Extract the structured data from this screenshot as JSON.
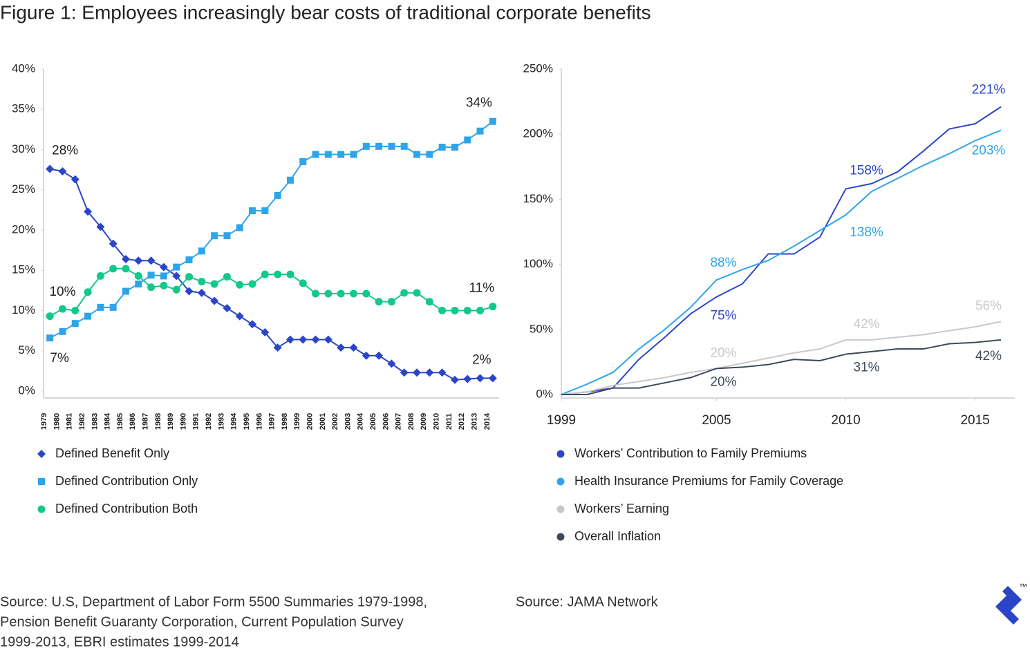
{
  "title": "Figure 1: Employees increasingly bear costs of traditional corporate benefits",
  "chart_data": [
    {
      "type": "line",
      "categories": [
        "1979",
        "1980",
        "1981",
        "1982",
        "1983",
        "1984",
        "1985",
        "1986",
        "1987",
        "1988",
        "1989",
        "1990",
        "1991",
        "1992",
        "1993",
        "1994",
        "1995",
        "1996",
        "1997",
        "1998",
        "1999",
        "2000",
        "2001",
        "2002",
        "2003",
        "2004",
        "2005",
        "2006",
        "2007",
        "2008",
        "2009",
        "2010",
        "2011",
        "2012",
        "2013",
        "2014"
      ],
      "ylim": [
        0,
        40
      ],
      "yticks": [
        {
          "value": 0,
          "label": "0%"
        },
        {
          "value": 5,
          "label": "5%"
        },
        {
          "value": 10,
          "label": "10%"
        },
        {
          "value": 15,
          "label": "15%"
        },
        {
          "value": 20,
          "label": "20%"
        },
        {
          "value": 25,
          "label": "25%"
        },
        {
          "value": 30,
          "label": "30%"
        },
        {
          "value": 35,
          "label": "35%"
        },
        {
          "value": 40,
          "label": "40%"
        }
      ],
      "series": [
        {
          "name": "Defined Benefit Only",
          "color": "#2b45c9",
          "marker": "diamond",
          "values": [
            27.6,
            27.3,
            26.3,
            22.3,
            20.4,
            18.3,
            16.4,
            16.2,
            16.2,
            15.4,
            14.3,
            12.4,
            12.2,
            11.2,
            10.3,
            9.3,
            8.3,
            7.3,
            5.4,
            6.4,
            6.4,
            6.4,
            6.4,
            5.4,
            5.4,
            4.4,
            4.4,
            3.4,
            2.3,
            2.3,
            2.3,
            2.3,
            1.4,
            1.5,
            1.6,
            1.6
          ],
          "value_labels": [
            "28%",
            null,
            null,
            null,
            null,
            null,
            null,
            null,
            null,
            null,
            null,
            null,
            null,
            null,
            null,
            null,
            null,
            null,
            null,
            null,
            null,
            null,
            null,
            null,
            null,
            null,
            null,
            null,
            null,
            null,
            null,
            null,
            null,
            null,
            null,
            "2%"
          ]
        },
        {
          "name": "Defined Contribution Only",
          "color": "#2fa5e8",
          "marker": "square",
          "values": [
            6.6,
            7.4,
            8.4,
            9.3,
            10.4,
            10.4,
            12.4,
            13.3,
            14.4,
            14.3,
            15.4,
            16.3,
            17.4,
            19.3,
            19.3,
            20.3,
            22.4,
            22.4,
            24.3,
            26.2,
            28.5,
            29.4,
            29.4,
            29.4,
            29.4,
            30.4,
            30.4,
            30.4,
            30.4,
            29.4,
            29.4,
            30.3,
            30.3,
            31.2,
            32.3,
            33.5
          ],
          "value_labels": [
            "7%",
            null,
            null,
            null,
            null,
            null,
            null,
            null,
            null,
            null,
            null,
            null,
            null,
            null,
            null,
            null,
            null,
            null,
            null,
            null,
            null,
            null,
            null,
            null,
            null,
            null,
            null,
            null,
            null,
            null,
            null,
            null,
            null,
            null,
            null,
            "34%"
          ]
        },
        {
          "name": "Defined Contribution Both",
          "color": "#12c98a",
          "marker": "circle",
          "values": [
            9.3,
            10.2,
            10.0,
            12.3,
            14.3,
            15.2,
            15.2,
            14.3,
            12.9,
            13.1,
            12.6,
            14.2,
            13.6,
            13.3,
            14.2,
            13.2,
            13.3,
            14.5,
            14.5,
            14.5,
            13.4,
            12.1,
            12.1,
            12.1,
            12.1,
            12.1,
            11.1,
            11.1,
            12.2,
            12.2,
            11.1,
            10.0,
            10.0,
            10.0,
            10.0,
            10.5
          ],
          "value_labels": [
            null,
            "10%",
            null,
            null,
            null,
            null,
            null,
            null,
            null,
            null,
            null,
            null,
            null,
            null,
            null,
            null,
            null,
            null,
            null,
            null,
            null,
            null,
            null,
            null,
            null,
            null,
            null,
            null,
            null,
            null,
            null,
            null,
            null,
            null,
            null,
            "11%"
          ]
        }
      ]
    },
    {
      "type": "line",
      "x": [
        1999,
        2000,
        2001,
        2002,
        2003,
        2004,
        2005,
        2006,
        2007,
        2008,
        2009,
        2010,
        2011,
        2012,
        2013,
        2014,
        2015,
        2016
      ],
      "xlim": [
        1999,
        2016
      ],
      "xticks": [
        1999,
        2005,
        2010,
        2015
      ],
      "ylim": [
        0,
        250
      ],
      "yticks": [
        {
          "value": 0,
          "label": "0%"
        },
        {
          "value": 50,
          "label": "50%"
        },
        {
          "value": 100,
          "label": "100%"
        },
        {
          "value": 150,
          "label": "150%"
        },
        {
          "value": 200,
          "label": "200%"
        },
        {
          "value": 250,
          "label": "250%"
        }
      ],
      "series": [
        {
          "name": "Workers’ Contribution to Family Premiums",
          "color": "#2b45c9",
          "marker": "none",
          "values": [
            0,
            2,
            5,
            27,
            44,
            62,
            75,
            85,
            108,
            108,
            121,
            158,
            162,
            171,
            187,
            204,
            208,
            221
          ],
          "value_labels": [
            null,
            null,
            null,
            null,
            null,
            null,
            "75%",
            null,
            null,
            null,
            null,
            "158%",
            null,
            null,
            null,
            null,
            null,
            "221%"
          ]
        },
        {
          "name": "Health Insurance Premiums for Family Coverage",
          "color": "#2fa5e8",
          "marker": "none",
          "values": [
            0,
            8,
            17,
            35,
            50,
            67,
            88,
            96,
            103,
            114,
            126,
            138,
            156,
            166,
            176,
            185,
            195,
            203
          ],
          "value_labels": [
            null,
            null,
            null,
            null,
            null,
            null,
            "88%",
            null,
            null,
            null,
            null,
            "138%",
            null,
            null,
            null,
            null,
            null,
            "203%"
          ]
        },
        {
          "name": "Workers’ Earning",
          "color": "#c8c8c8",
          "marker": "none",
          "values": [
            0,
            2,
            7,
            10,
            13,
            17,
            20,
            24,
            28,
            32,
            35,
            42,
            42,
            44,
            46,
            49,
            52,
            56
          ],
          "value_labels": [
            null,
            null,
            null,
            null,
            null,
            null,
            "20%",
            null,
            null,
            null,
            null,
            "42%",
            null,
            null,
            null,
            null,
            null,
            "56%"
          ]
        },
        {
          "name": "Overall Inflation",
          "color": "#3d4a5c",
          "marker": "none",
          "values": [
            0,
            0,
            5,
            5,
            9,
            13,
            20,
            21,
            23,
            27,
            26,
            31,
            33,
            35,
            35,
            39,
            40,
            42
          ],
          "value_labels": [
            null,
            null,
            null,
            null,
            null,
            null,
            "20%",
            null,
            null,
            null,
            null,
            "31%",
            null,
            null,
            null,
            null,
            null,
            "42%"
          ]
        }
      ]
    }
  ],
  "sources": [
    [
      "Source: U.S, Department of Labor Form 5500 Summaries 1979-1998,",
      "Pension Benefit Guaranty Corporation, Current Population Survey",
      "1999-2013, EBRI estimates 1999-2014"
    ],
    [
      "Source: JAMA Network"
    ]
  ],
  "logo": "™"
}
